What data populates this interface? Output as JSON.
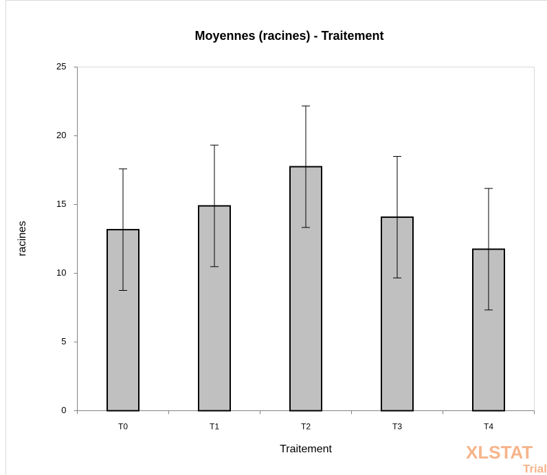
{
  "chart_data": {
    "type": "bar",
    "title": "Moyennes (racines) - Traitement",
    "xlabel": "Traitement",
    "ylabel": "racines",
    "categories": [
      "T0",
      "T1",
      "T2",
      "T3",
      "T4"
    ],
    "values": [
      13.17,
      14.9,
      17.75,
      14.08,
      11.75
    ],
    "errors": [
      4.42,
      4.42,
      4.42,
      4.42,
      4.42
    ],
    "color": "#c0c0c0",
    "ylim": [
      0,
      25
    ],
    "yticks": [
      0,
      5,
      10,
      15,
      20,
      25
    ],
    "grid": false,
    "watermark": [
      "XLSTAT",
      "Trial"
    ]
  }
}
